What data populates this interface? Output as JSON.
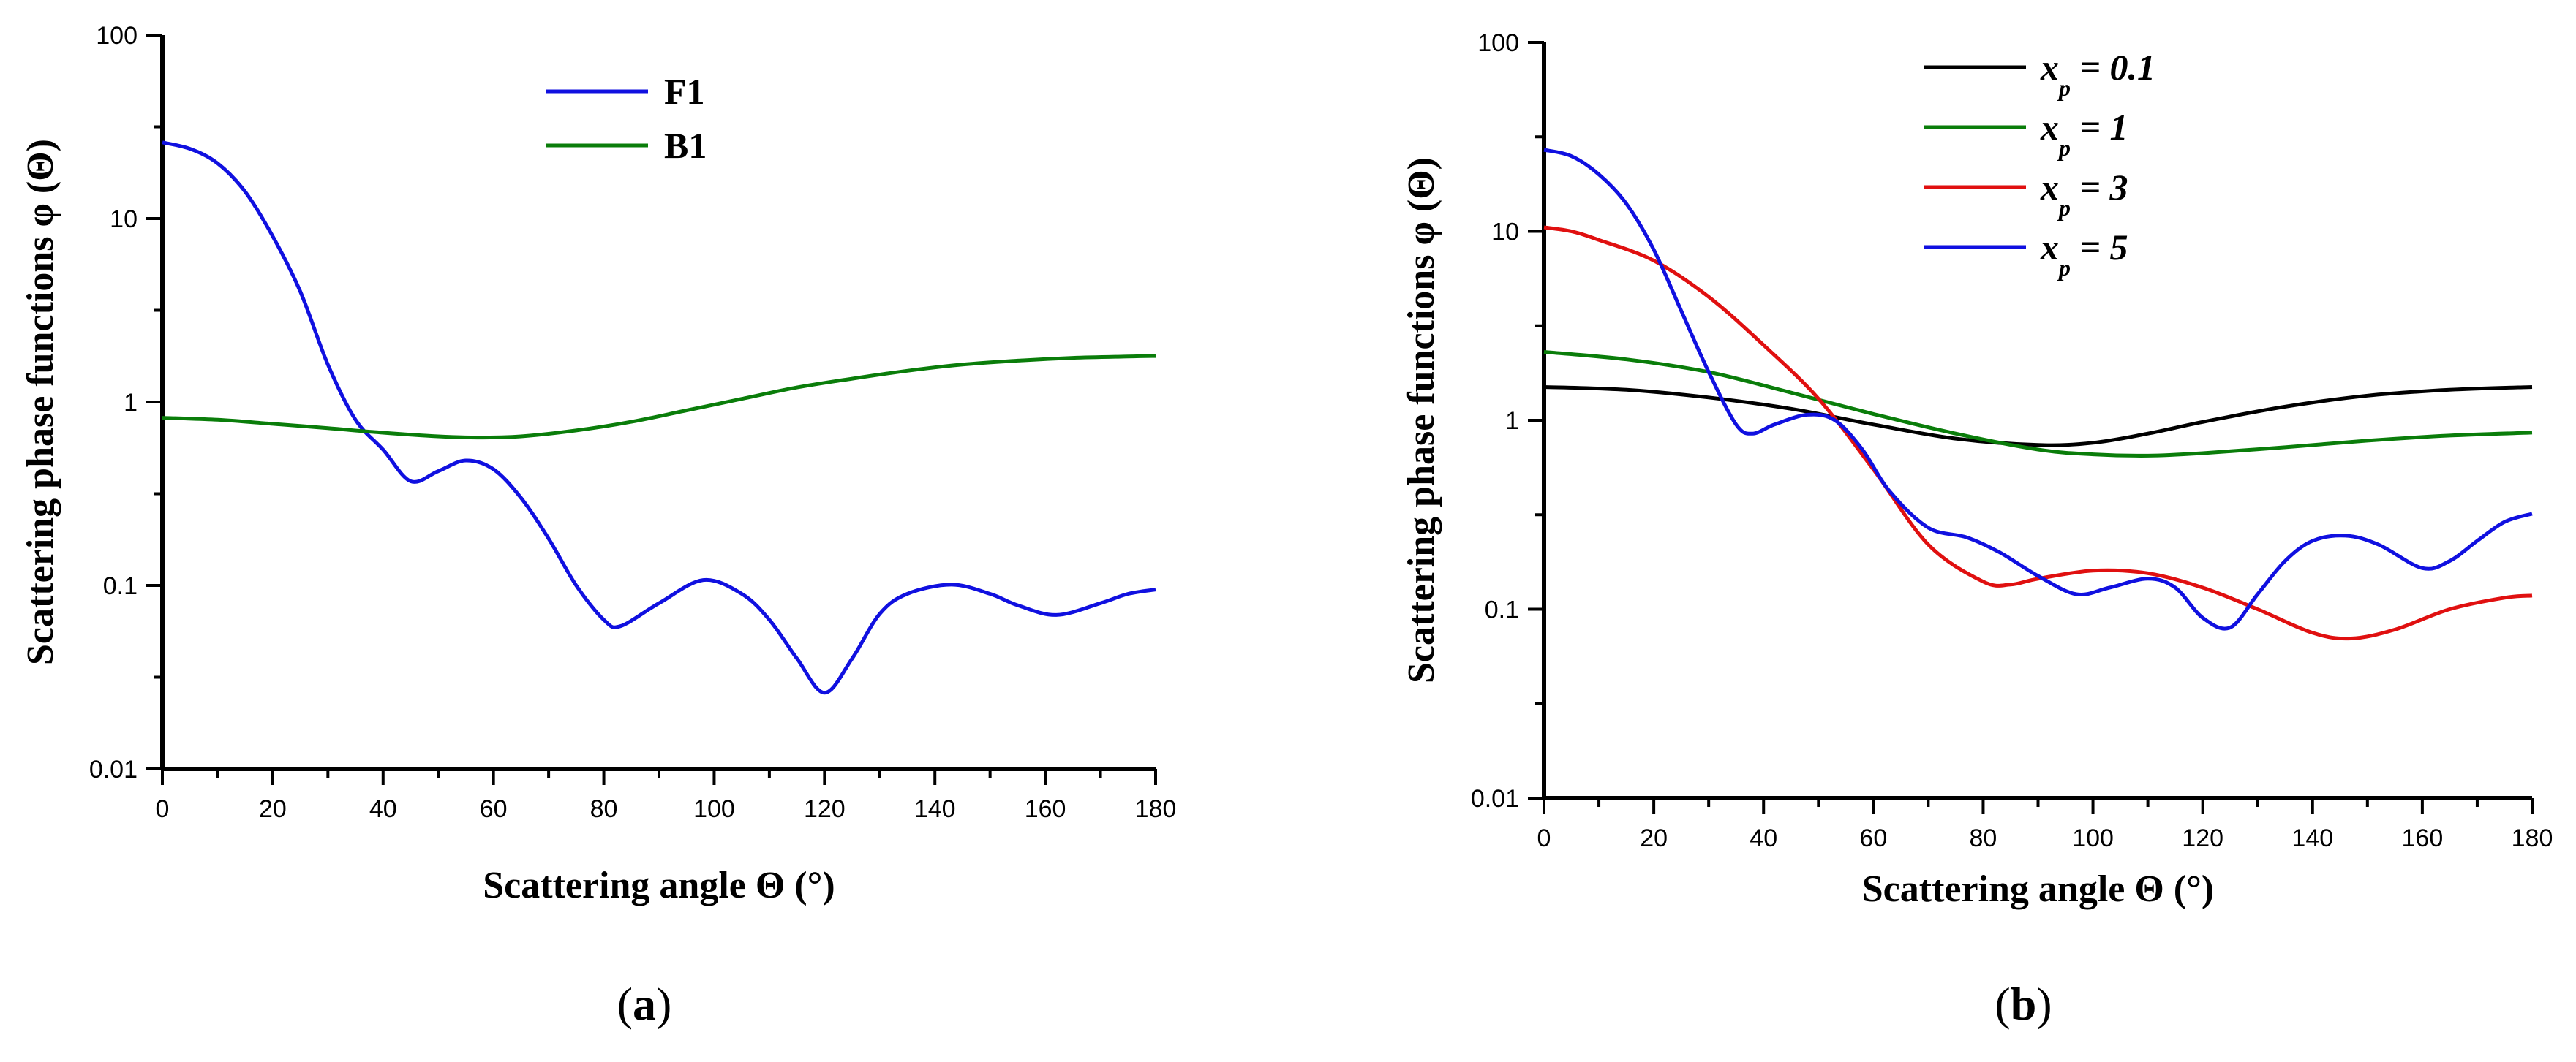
{
  "chart_data": [
    {
      "type": "line",
      "panel": "(a)",
      "panel_letter": "a",
      "xlabel": "Scattering angle Θ (°)",
      "ylabel": "Scattering phase functions φ (Θ)",
      "xlim": [
        0,
        180
      ],
      "ylim": [
        0.01,
        100
      ],
      "yscale": "log",
      "x_ticks": [
        "0",
        "20",
        "40",
        "60",
        "80",
        "100",
        "120",
        "140",
        "160",
        "180"
      ],
      "y_ticks": [
        "0.01",
        "0.1",
        "1",
        "10",
        "100"
      ],
      "legend": "top-center",
      "series": [
        {
          "name": "F1",
          "color": "#1010e0",
          "x": [
            0,
            5,
            10,
            15,
            20,
            25,
            30,
            35,
            40,
            45,
            50,
            55,
            60,
            65,
            70,
            75,
            80,
            83,
            90,
            98,
            105,
            110,
            115,
            120,
            125,
            130,
            135,
            143,
            150,
            155,
            162,
            170,
            175,
            180
          ],
          "y": [
            26,
            24,
            20,
            14,
            8,
            4,
            1.6,
            0.8,
            0.55,
            0.37,
            0.42,
            0.48,
            0.43,
            0.3,
            0.18,
            0.1,
            0.065,
            0.06,
            0.08,
            0.107,
            0.09,
            0.065,
            0.04,
            0.026,
            0.04,
            0.07,
            0.09,
            0.101,
            0.09,
            0.078,
            0.069,
            0.08,
            0.09,
            0.095
          ]
        },
        {
          "name": "B1",
          "color": "#0a7d0a",
          "x": [
            0,
            10,
            20,
            30,
            40,
            50,
            57,
            65,
            75,
            85,
            95,
            105,
            115,
            125,
            135,
            145,
            155,
            165,
            175,
            180
          ],
          "y": [
            0.82,
            0.8,
            0.76,
            0.72,
            0.68,
            0.65,
            0.64,
            0.65,
            0.7,
            0.78,
            0.9,
            1.04,
            1.2,
            1.34,
            1.48,
            1.6,
            1.68,
            1.74,
            1.77,
            1.78
          ]
        }
      ]
    },
    {
      "type": "line",
      "panel": "(b)",
      "panel_letter": "b",
      "xlabel": "Scattering angle Θ (°)",
      "ylabel": "Scattering phase functions φ (Θ)",
      "xlim": [
        0,
        180
      ],
      "ylim": [
        0.01,
        100
      ],
      "yscale": "log",
      "x_ticks": [
        "0",
        "20",
        "40",
        "60",
        "80",
        "100",
        "120",
        "140",
        "160",
        "180"
      ],
      "y_ticks": [
        "0.01",
        "0.1",
        "1",
        "10",
        "100"
      ],
      "legend": "top-center",
      "series": [
        {
          "name": "x_p = 0.1",
          "legend_main": "x",
          "legend_sub": "p",
          "legend_rest": " = 0.1",
          "color": "#000000",
          "x": [
            0,
            15,
            30,
            45,
            60,
            75,
            90,
            100,
            110,
            120,
            135,
            150,
            165,
            180
          ],
          "y": [
            1.5,
            1.45,
            1.32,
            1.15,
            0.95,
            0.8,
            0.74,
            0.76,
            0.85,
            0.98,
            1.18,
            1.35,
            1.45,
            1.5
          ]
        },
        {
          "name": "x_p = 1",
          "legend_main": "x",
          "legend_sub": "p",
          "legend_rest": " = 1",
          "color": "#0a7d0a",
          "x": [
            0,
            15,
            30,
            45,
            60,
            75,
            90,
            100,
            110,
            120,
            135,
            150,
            165,
            180
          ],
          "y": [
            2.3,
            2.1,
            1.8,
            1.4,
            1.08,
            0.85,
            0.7,
            0.66,
            0.65,
            0.67,
            0.72,
            0.78,
            0.83,
            0.86
          ]
        },
        {
          "name": "x_p = 3",
          "legend_main": "x",
          "legend_sub": "p",
          "legend_rest": " = 3",
          "color": "#e01010",
          "x": [
            0,
            5,
            10,
            20,
            30,
            40,
            50,
            60,
            70,
            80,
            85,
            90,
            100,
            110,
            120,
            130,
            140,
            147,
            155,
            165,
            175,
            180
          ],
          "y": [
            10.5,
            10,
            9,
            7,
            4.5,
            2.5,
            1.3,
            0.55,
            0.22,
            0.14,
            0.135,
            0.145,
            0.16,
            0.155,
            0.13,
            0.1,
            0.075,
            0.07,
            0.078,
            0.1,
            0.115,
            0.118
          ]
        },
        {
          "name": "x_p = 5",
          "legend_main": "x",
          "legend_sub": "p",
          "legend_rest": " = 5",
          "color": "#1010e0",
          "x": [
            0,
            5,
            10,
            15,
            20,
            25,
            30,
            35,
            38,
            42,
            48,
            53,
            58,
            63,
            70,
            77,
            83,
            90,
            97,
            103,
            110,
            115,
            120,
            125,
            130,
            135,
            140,
            146,
            152,
            160,
            165,
            170,
            175,
            180
          ],
          "y": [
            27,
            25,
            20,
            14,
            8,
            3.8,
            1.8,
            0.95,
            0.85,
            0.95,
            1.07,
            1.0,
            0.7,
            0.42,
            0.27,
            0.24,
            0.2,
            0.15,
            0.12,
            0.13,
            0.145,
            0.13,
            0.09,
            0.08,
            0.12,
            0.18,
            0.23,
            0.245,
            0.22,
            0.165,
            0.18,
            0.23,
            0.29,
            0.32
          ]
        }
      ]
    }
  ]
}
